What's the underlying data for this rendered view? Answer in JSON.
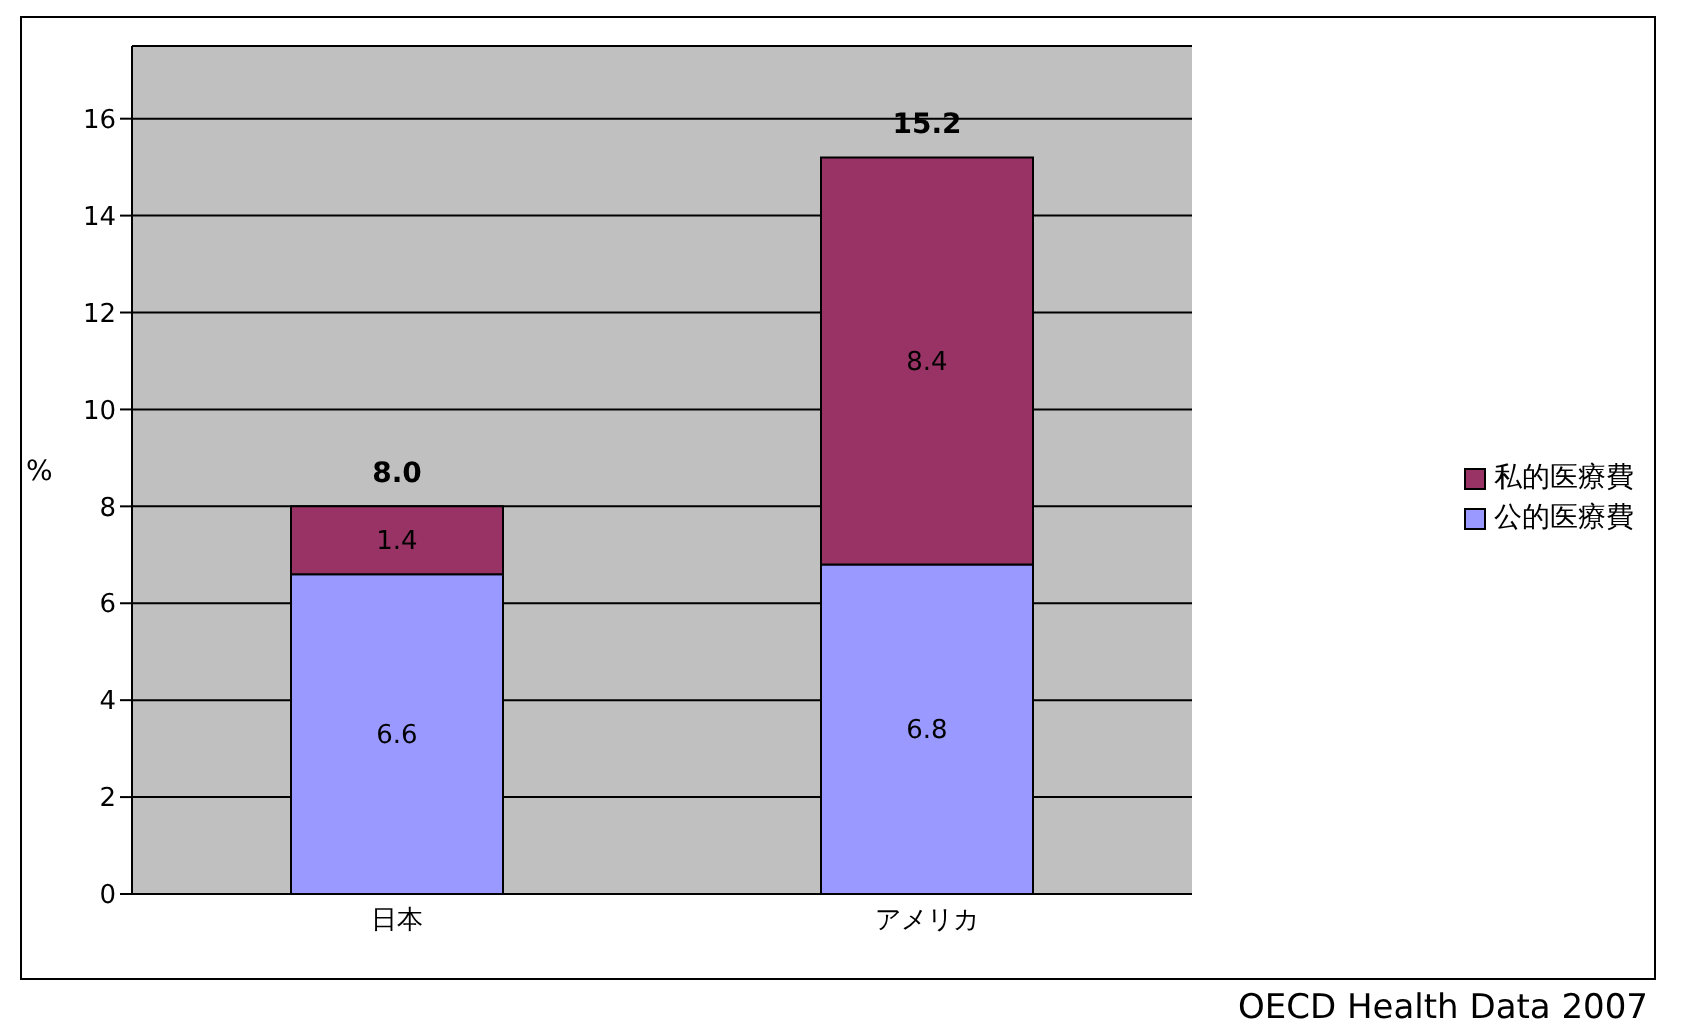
{
  "chart_data": {
    "type": "bar",
    "stacked": true,
    "categories": [
      "日本",
      "アメリカ"
    ],
    "ylabel": "%",
    "ylim": [
      0,
      17.5
    ],
    "yticks": [
      0,
      2,
      4,
      6,
      8,
      10,
      12,
      14,
      16
    ],
    "grid": "y",
    "legend": "right",
    "data_labels": true,
    "totals": [
      "8.0",
      "15.2"
    ],
    "series": [
      {
        "name": "公的医療費",
        "color": "#9999ff",
        "values": [
          6.6,
          6.8
        ]
      },
      {
        "name": "私的医療費",
        "color": "#993366",
        "values": [
          1.4,
          8.4
        ]
      }
    ],
    "annotations": [
      "OECD Health Data 2007"
    ]
  }
}
